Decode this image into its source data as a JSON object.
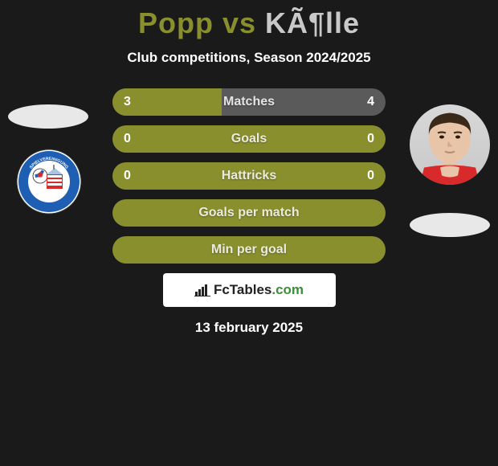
{
  "title": {
    "player1": "Popp",
    "vs": " vs ",
    "player2": "KÃ¶lle",
    "player1_color": "#8a8f2e",
    "player2_color": "#c9c9c9"
  },
  "subtitle": "Club competitions, Season 2024/2025",
  "stats": [
    {
      "label": "Matches",
      "left_val": "3",
      "right_val": "4",
      "row_bg": "#5a5a5a",
      "left_fill_color": "#8a8f2e",
      "left_fill_pct": 40
    },
    {
      "label": "Goals",
      "left_val": "0",
      "right_val": "0",
      "row_bg": "#8a8f2e",
      "left_fill_color": "#8a8f2e",
      "left_fill_pct": 0
    },
    {
      "label": "Hattricks",
      "left_val": "0",
      "right_val": "0",
      "row_bg": "#8a8f2e",
      "left_fill_color": "#8a8f2e",
      "left_fill_pct": 0
    },
    {
      "label": "Goals per match",
      "left_val": "",
      "right_val": "",
      "row_bg": "#8a8f2e",
      "left_fill_color": "#8a8f2e",
      "left_fill_pct": 0
    },
    {
      "label": "Min per goal",
      "left_val": "",
      "right_val": "",
      "row_bg": "#8a8f2e",
      "left_fill_color": "#8a8f2e",
      "left_fill_pct": 0
    }
  ],
  "brand": {
    "text_fc": "FcTables",
    "text_com": ".com",
    "fc_color": "#222222",
    "com_color": "#3b8f3b"
  },
  "date": "13 february 2025",
  "club_logo": {
    "outer_ring": "#ffffff",
    "red": "#d82a2a",
    "blue": "#1e5fb4",
    "text": "SPIELVEREINIGUNG UNTERHACHING"
  },
  "colors": {
    "background": "#1a1a1a",
    "olive": "#8a8f2e",
    "gray": "#c9c9c9"
  }
}
